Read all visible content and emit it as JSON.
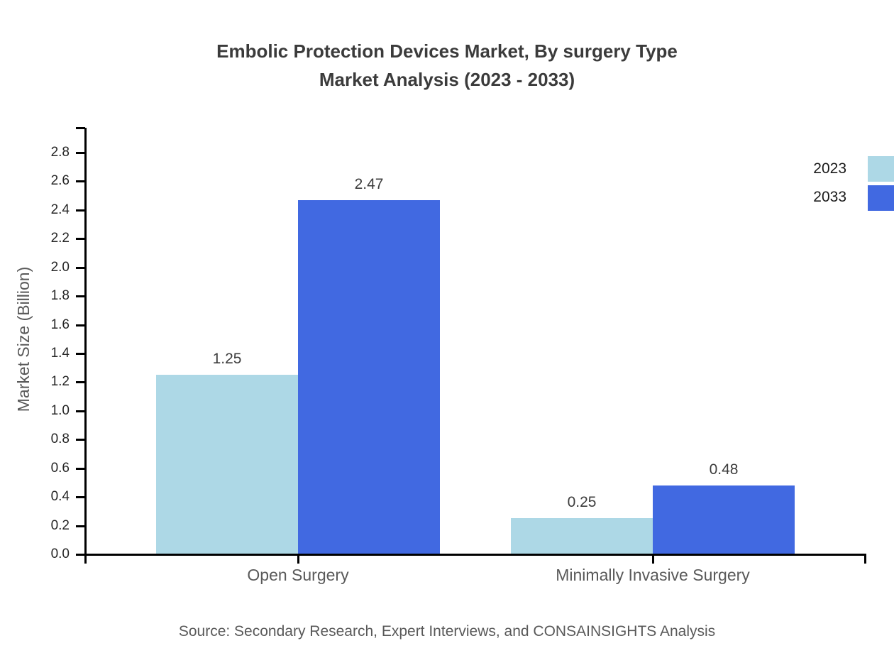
{
  "title": {
    "line1": "Embolic Protection Devices Market, By surgery Type",
    "line2": "Market Analysis (2023 - 2033)"
  },
  "source": "Source: Secondary Research, Expert Interviews, and CONSAINSIGHTS Analysis",
  "chart_data": {
    "type": "bar",
    "title": "Embolic Protection Devices Market, By surgery Type Market Analysis (2023 - 2033)",
    "categories": [
      "Open Surgery",
      "Minimally Invasive Surgery"
    ],
    "series": [
      {
        "name": "2023",
        "color": "#ADD8E6",
        "values": [
          1.25,
          0.25
        ],
        "value_labels": [
          "1.25",
          "0.25"
        ]
      },
      {
        "name": "2033",
        "color": "#4169E1",
        "values": [
          2.47,
          0.48
        ],
        "value_labels": [
          "2.47",
          "0.48"
        ]
      }
    ],
    "xlabel": "",
    "ylabel": "Market Size (Billion)",
    "ylim": [
      0.0,
      3.0
    ],
    "yticks": [
      0.0,
      0.2,
      0.4,
      0.6,
      0.8,
      1.0,
      1.2,
      1.4,
      1.6,
      1.8,
      2.0,
      2.2,
      2.4,
      2.6,
      2.8
    ],
    "ytick_decimals": 1,
    "grid": false,
    "legend_position": "top-right",
    "bar_value_labels_shown": true
  },
  "legend": {
    "entries": [
      {
        "label": "2023",
        "color": "#ADD8E6"
      },
      {
        "label": "2033",
        "color": "#4169E1"
      }
    ]
  },
  "colors": {
    "series_2023": "#ADD8E6",
    "series_2033": "#4169E1",
    "title_text": "#3B3B3B",
    "axis_line": "#000000",
    "tick_label": "#262626",
    "muted_text": "#595959",
    "value_label": "#3C3C3C",
    "background": "#FFFFFF"
  }
}
